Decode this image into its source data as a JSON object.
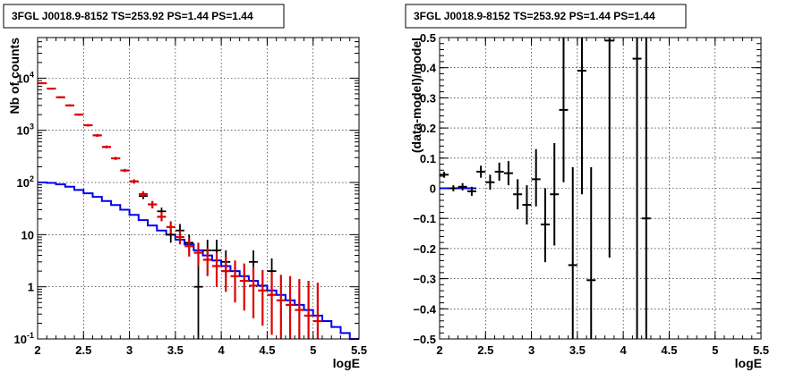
{
  "chart_data": [
    {
      "type": "line",
      "title": "3FGL J0018.9-8152 TS=253.92 PS=1.44 PS=1.44",
      "xlabel": "logE",
      "ylabel": "Nb of counts",
      "xlim": [
        2,
        5.5
      ],
      "ylim": [
        0.1,
        60000
      ],
      "yscale": "log",
      "grid": true,
      "xticks": [
        "2",
        "2.5",
        "3",
        "3.5",
        "4",
        "4.5",
        "5",
        "5.5"
      ],
      "yticks": [
        {
          "value": 0.1,
          "label": "10",
          "sup": "-1"
        },
        {
          "value": 1,
          "label": "1",
          "sup": ""
        },
        {
          "value": 10,
          "label": "10",
          "sup": ""
        },
        {
          "value": 100,
          "label": "10",
          "sup": "2"
        },
        {
          "value": 1000,
          "label": "10",
          "sup": "3"
        },
        {
          "value": 10000,
          "label": "10",
          "sup": "4"
        }
      ],
      "series": [
        {
          "role": "model",
          "color": "#0000ee",
          "edges": [
            2.0,
            2.1,
            2.2,
            2.3,
            2.4,
            2.5,
            2.6,
            2.7,
            2.8,
            2.9,
            3.0,
            3.1,
            3.2,
            3.3,
            3.4,
            3.5,
            3.6,
            3.7,
            3.8,
            3.9,
            4.0,
            4.1,
            4.2,
            4.3,
            4.4,
            4.5,
            4.6,
            4.7,
            4.8,
            4.9,
            5.0,
            5.1,
            5.2,
            5.3,
            5.4,
            5.5
          ],
          "values": [
            100,
            98,
            92,
            83,
            72,
            62,
            53,
            44,
            37,
            30,
            24,
            19,
            15,
            12,
            10,
            8,
            6.5,
            5,
            4,
            3.2,
            2.5,
            2,
            1.6,
            1.3,
            1.05,
            0.85,
            0.7,
            0.55,
            0.45,
            0.36,
            0.28,
            0.22,
            0.17,
            0.13,
            0.1
          ]
        },
        {
          "role": "data",
          "color": "#000000",
          "points": [
            {
              "x": 2.05,
              "y": 8000,
              "lo": 7900,
              "hi": 8100
            },
            {
              "x": 2.15,
              "y": 6300,
              "lo": 6200,
              "hi": 6400
            },
            {
              "x": 2.25,
              "y": 4300,
              "lo": 4220,
              "hi": 4380
            },
            {
              "x": 2.35,
              "y": 3000,
              "lo": 2940,
              "hi": 3060
            },
            {
              "x": 2.45,
              "y": 2000,
              "lo": 1950,
              "hi": 2050
            },
            {
              "x": 2.55,
              "y": 1250,
              "lo": 1210,
              "hi": 1290
            },
            {
              "x": 2.65,
              "y": 800,
              "lo": 770,
              "hi": 830
            },
            {
              "x": 2.75,
              "y": 480,
              "lo": 460,
              "hi": 500
            },
            {
              "x": 2.85,
              "y": 290,
              "lo": 275,
              "hi": 305
            },
            {
              "x": 2.95,
              "y": 170,
              "lo": 160,
              "hi": 180
            },
            {
              "x": 3.05,
              "y": 105,
              "lo": 95,
              "hi": 115
            },
            {
              "x": 3.15,
              "y": 55,
              "lo": 48,
              "hi": 62
            },
            {
              "x": 3.25,
              "y": 38,
              "lo": 32,
              "hi": 44
            },
            {
              "x": 3.35,
              "y": 28,
              "lo": 23,
              "hi": 33
            },
            {
              "x": 3.45,
              "y": 10,
              "lo": 7,
              "hi": 14
            },
            {
              "x": 3.55,
              "y": 12,
              "lo": 9,
              "hi": 16
            },
            {
              "x": 3.65,
              "y": 7,
              "lo": 4.5,
              "hi": 10
            },
            {
              "x": 3.75,
              "y": 1,
              "lo": 0.1,
              "hi": 3
            },
            {
              "x": 3.85,
              "y": 5,
              "lo": 3,
              "hi": 8
            },
            {
              "x": 3.95,
              "y": 5,
              "lo": 3,
              "hi": 8
            },
            {
              "x": 4.05,
              "y": 3,
              "lo": 1.6,
              "hi": 5
            },
            {
              "x": 4.35,
              "y": 3,
              "lo": 1.6,
              "hi": 5
            },
            {
              "x": 4.55,
              "y": 2,
              "lo": 1,
              "hi": 3.5
            }
          ]
        },
        {
          "role": "model-prediction",
          "color": "#dd0000",
          "points": [
            {
              "x": 2.05,
              "y": 8000,
              "lo": 7700,
              "hi": 8300
            },
            {
              "x": 2.15,
              "y": 6300,
              "lo": 6050,
              "hi": 6550
            },
            {
              "x": 2.25,
              "y": 4300,
              "lo": 4100,
              "hi": 4500
            },
            {
              "x": 2.35,
              "y": 3000,
              "lo": 2850,
              "hi": 3150
            },
            {
              "x": 2.45,
              "y": 2000,
              "lo": 1900,
              "hi": 2100
            },
            {
              "x": 2.55,
              "y": 1250,
              "lo": 1180,
              "hi": 1320
            },
            {
              "x": 2.65,
              "y": 800,
              "lo": 750,
              "hi": 850
            },
            {
              "x": 2.75,
              "y": 480,
              "lo": 450,
              "hi": 510
            },
            {
              "x": 2.85,
              "y": 290,
              "lo": 270,
              "hi": 310
            },
            {
              "x": 2.95,
              "y": 170,
              "lo": 158,
              "hi": 182
            },
            {
              "x": 3.05,
              "y": 105,
              "lo": 96,
              "hi": 114
            },
            {
              "x": 3.15,
              "y": 60,
              "lo": 53,
              "hi": 68
            },
            {
              "x": 3.25,
              "y": 38,
              "lo": 32,
              "hi": 44
            },
            {
              "x": 3.35,
              "y": 22,
              "lo": 18,
              "hi": 27
            },
            {
              "x": 3.45,
              "y": 14,
              "lo": 10.5,
              "hi": 18
            },
            {
              "x": 3.55,
              "y": 9,
              "lo": 6.5,
              "hi": 12
            },
            {
              "x": 3.65,
              "y": 6,
              "lo": 3.8,
              "hi": 8.5
            },
            {
              "x": 3.75,
              "y": 4.5,
              "lo": 2.5,
              "hi": 7
            },
            {
              "x": 3.85,
              "y": 3.3,
              "lo": 1.6,
              "hi": 5.5
            },
            {
              "x": 3.95,
              "y": 2.5,
              "lo": 1,
              "hi": 4.5
            },
            {
              "x": 4.05,
              "y": 2,
              "lo": 0.8,
              "hi": 3.8
            },
            {
              "x": 4.15,
              "y": 1.6,
              "lo": 0.5,
              "hi": 3.2
            },
            {
              "x": 4.25,
              "y": 1.3,
              "lo": 0.35,
              "hi": 2.8
            },
            {
              "x": 4.35,
              "y": 1.05,
              "lo": 0.25,
              "hi": 2.4
            },
            {
              "x": 4.45,
              "y": 0.85,
              "lo": 0.18,
              "hi": 2.1
            },
            {
              "x": 4.55,
              "y": 0.7,
              "lo": 0.12,
              "hi": 1.9
            },
            {
              "x": 4.65,
              "y": 0.55,
              "lo": 0.1,
              "hi": 1.7
            },
            {
              "x": 4.75,
              "y": 0.45,
              "lo": 0.1,
              "hi": 1.6
            },
            {
              "x": 4.85,
              "y": 0.36,
              "lo": 0.1,
              "hi": 1.4
            },
            {
              "x": 4.95,
              "y": 0.28,
              "lo": 0.1,
              "hi": 1.3
            },
            {
              "x": 5.05,
              "y": 0.22,
              "lo": 0.1,
              "hi": 1.2
            }
          ]
        }
      ]
    },
    {
      "type": "scatter",
      "title": "3FGL J0018.9-8152 TS=253.92 PS=1.44 PS=1.44",
      "xlabel": "logE",
      "ylabel": "(data-model)/model",
      "xlim": [
        2,
        5.5
      ],
      "ylim": [
        -0.5,
        0.5
      ],
      "grid": true,
      "xticks": [
        "2",
        "2.5",
        "3",
        "3.5",
        "4",
        "4.5",
        "5",
        "5.5"
      ],
      "yticks": [
        "−0.5",
        "−0.4",
        "−0.3",
        "−0.2",
        "−0.1",
        "0",
        "0.1",
        "0.2",
        "0.3",
        "0.4",
        "0.5"
      ],
      "series": [
        {
          "role": "residuals",
          "color": "#000000",
          "zero_line": {
            "x": [
              2.0,
              2.4
            ],
            "color": "#0000ee"
          },
          "points": [
            {
              "x": 2.05,
              "y": 0.045,
              "lo": 0.035,
              "hi": 0.055
            },
            {
              "x": 2.15,
              "y": 0.0,
              "lo": -0.01,
              "hi": 0.01
            },
            {
              "x": 2.25,
              "y": 0.005,
              "lo": -0.007,
              "hi": 0.017
            },
            {
              "x": 2.35,
              "y": -0.01,
              "lo": -0.025,
              "hi": 0.005
            },
            {
              "x": 2.45,
              "y": 0.055,
              "lo": 0.035,
              "hi": 0.075
            },
            {
              "x": 2.55,
              "y": 0.02,
              "lo": -0.005,
              "hi": 0.045
            },
            {
              "x": 2.65,
              "y": 0.055,
              "lo": 0.025,
              "hi": 0.085
            },
            {
              "x": 2.75,
              "y": 0.05,
              "lo": 0.01,
              "hi": 0.09
            },
            {
              "x": 2.85,
              "y": -0.02,
              "lo": -0.07,
              "hi": 0.03
            },
            {
              "x": 2.95,
              "y": -0.055,
              "lo": -0.12,
              "hi": 0.01
            },
            {
              "x": 3.05,
              "y": 0.03,
              "lo": -0.06,
              "hi": 0.13
            },
            {
              "x": 3.15,
              "y": -0.12,
              "lo": -0.245,
              "hi": 0.0
            },
            {
              "x": 3.25,
              "y": -0.02,
              "lo": -0.19,
              "hi": 0.15
            },
            {
              "x": 3.35,
              "y": 0.26,
              "lo": 0.02,
              "hi": 0.5
            },
            {
              "x": 3.45,
              "y": -0.255,
              "lo": -0.5,
              "hi": 0.07
            },
            {
              "x": 3.55,
              "y": 0.39,
              "lo": -0.02,
              "hi": 0.5
            },
            {
              "x": 3.65,
              "y": -0.305,
              "lo": -0.5,
              "hi": 0.07
            },
            {
              "x": 3.85,
              "y": 0.49,
              "lo": -0.23,
              "hi": 0.5
            },
            {
              "x": 4.15,
              "y": 0.43,
              "lo": -0.5,
              "hi": 0.5
            },
            {
              "x": 4.25,
              "y": -0.1,
              "lo": -0.5,
              "hi": 0.5
            }
          ]
        }
      ]
    }
  ]
}
